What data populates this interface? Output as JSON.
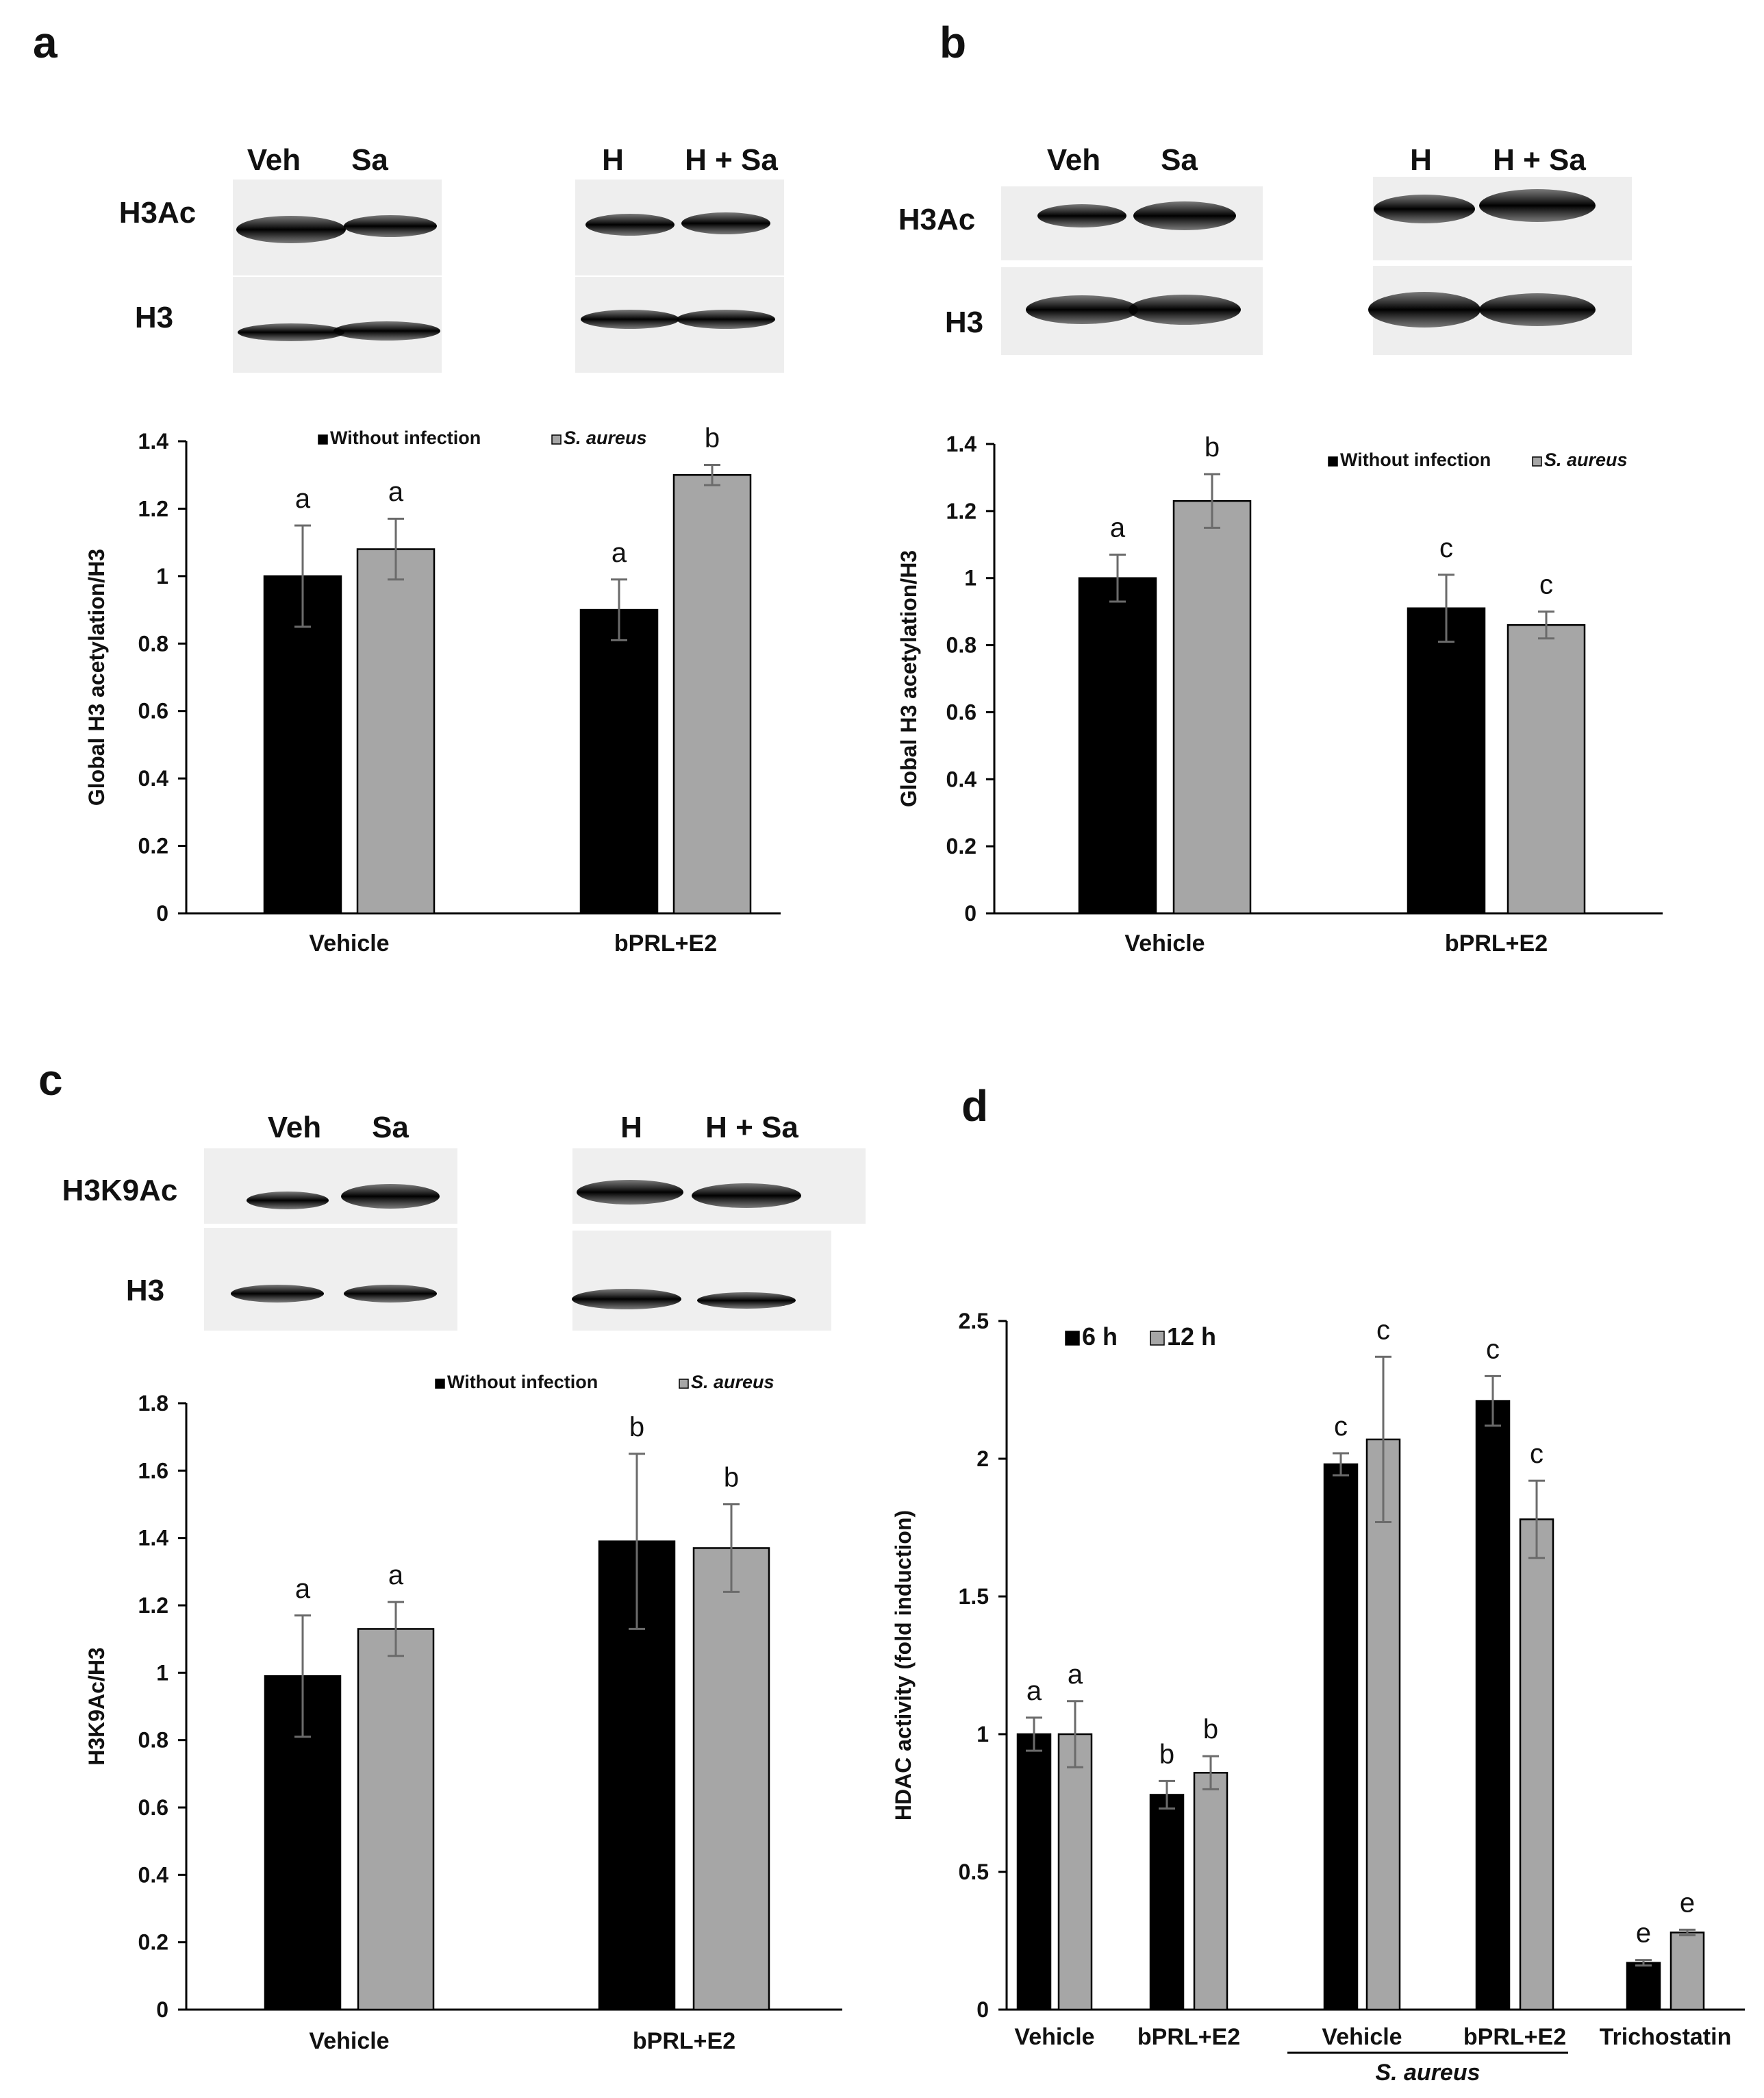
{
  "panels": [
    {
      "id": "a",
      "letter": "a",
      "blot": {
        "lanes_left": [
          "Veh",
          "Sa"
        ],
        "lanes_right": [
          "H",
          "H + Sa"
        ],
        "rows": [
          "H3Ac",
          "H3"
        ]
      }
    },
    {
      "id": "b",
      "letter": "b",
      "blot": {
        "lanes_left": [
          "Veh",
          "Sa"
        ],
        "lanes_right": [
          "H",
          "H + Sa"
        ],
        "rows": [
          "H3Ac",
          "H3"
        ]
      }
    },
    {
      "id": "c",
      "letter": "c",
      "blot": {
        "lanes_left": [
          "Veh",
          "Sa"
        ],
        "lanes_right": [
          "H",
          "H + Sa"
        ],
        "rows": [
          "H3K9Ac",
          "H3"
        ]
      }
    },
    {
      "id": "d",
      "letter": "d",
      "blot": null
    }
  ],
  "colors": {
    "black_series": "#000000",
    "gray_series": "#a6a6a6",
    "axis": "#000000",
    "error_bar": "#6b6b6b"
  },
  "chart_data": [
    {
      "panel": "a",
      "type": "bar",
      "categories": [
        "Vehicle",
        "bPRL+E2"
      ],
      "series": [
        {
          "name": "Without infection",
          "values": [
            1.0,
            0.9
          ],
          "errors": [
            0.15,
            0.09
          ],
          "letters": [
            "a",
            "a"
          ]
        },
        {
          "name": "S. aureus",
          "values": [
            1.08,
            1.3
          ],
          "errors": [
            0.09,
            0.03
          ],
          "letters": [
            "a",
            "b"
          ]
        }
      ],
      "ylabel": "Global H3 acetylation/H3",
      "ylim": [
        0,
        1.4
      ],
      "yticks": [
        "0",
        "0.2",
        "0.4",
        "0.6",
        "0.8",
        "1",
        "1.2",
        "1.4"
      ],
      "legend": "top"
    },
    {
      "panel": "b",
      "type": "bar",
      "categories": [
        "Vehicle",
        "bPRL+E2"
      ],
      "series": [
        {
          "name": "Without infection",
          "values": [
            1.0,
            0.91
          ],
          "errors": [
            0.07,
            0.1
          ],
          "letters": [
            "a",
            "c"
          ]
        },
        {
          "name": "S. aureus",
          "values": [
            1.23,
            0.86
          ],
          "errors": [
            0.08,
            0.04
          ],
          "letters": [
            "b",
            "c"
          ]
        }
      ],
      "ylabel": "Global H3  acetylation/H3",
      "ylim": [
        0,
        1.4
      ],
      "yticks": [
        "0",
        "0.2",
        "0.4",
        "0.6",
        "0.8",
        "1",
        "1.2",
        "1.4"
      ],
      "legend": "top-right"
    },
    {
      "panel": "c",
      "type": "bar",
      "categories": [
        "Vehicle",
        "bPRL+E2"
      ],
      "series": [
        {
          "name": "Without infection",
          "values": [
            0.99,
            1.39
          ],
          "errors": [
            0.18,
            0.26
          ],
          "letters": [
            "a",
            "b"
          ]
        },
        {
          "name": "S. aureus",
          "values": [
            1.13,
            1.37
          ],
          "errors": [
            0.08,
            0.13
          ],
          "letters": [
            "a",
            "b"
          ]
        }
      ],
      "ylabel": "H3K9Ac/H3",
      "ylim": [
        0,
        1.8
      ],
      "yticks": [
        "0",
        "0.2",
        "0.4",
        "0.6",
        "0.8",
        "1",
        "1.2",
        "1.4",
        "1.6",
        "1.8"
      ],
      "legend": "top-right"
    },
    {
      "panel": "d",
      "type": "bar",
      "categories": [
        "Vehicle",
        "bPRL+E2",
        "Vehicle",
        "bPRL+E2",
        "Trichostatin"
      ],
      "group_label": {
        "text": "S. aureus",
        "spans": [
          2,
          3
        ]
      },
      "series": [
        {
          "name": "6 h",
          "values": [
            1.0,
            0.78,
            1.98,
            2.21,
            0.17
          ],
          "errors": [
            0.06,
            0.05,
            0.04,
            0.09,
            0.01
          ],
          "letters": [
            "a",
            "b",
            "c",
            "c",
            "e"
          ]
        },
        {
          "name": "12 h",
          "values": [
            1.0,
            0.86,
            2.07,
            1.78,
            0.28
          ],
          "errors": [
            0.12,
            0.06,
            0.3,
            0.14,
            0.01
          ],
          "letters": [
            "a",
            "b",
            "c",
            "c",
            "e"
          ]
        }
      ],
      "ylabel": "HDAC activity (fold induction)",
      "ylim": [
        0,
        2.5
      ],
      "yticks": [
        "0",
        "0.5",
        "1",
        "1.5",
        "2",
        "2.5"
      ],
      "legend": "top-left"
    }
  ]
}
